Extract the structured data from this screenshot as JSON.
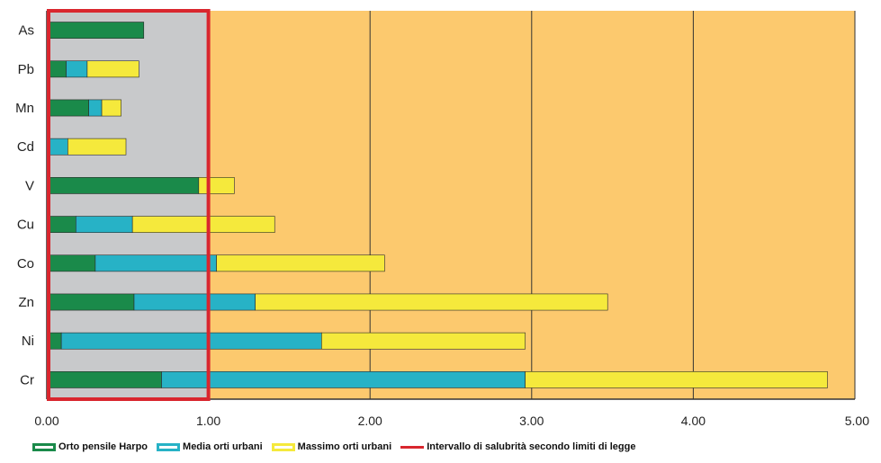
{
  "chart_data": {
    "type": "bar",
    "orientation": "horizontal",
    "stacked": true,
    "categories": [
      "As",
      "Pb",
      "Mn",
      "Cd",
      "V",
      "Cu",
      "Co",
      "Zn",
      "Ni",
      "Cr"
    ],
    "series": [
      {
        "name": "Orto pensile Harpo",
        "color": "#1a8a4a",
        "values": [
          0.6,
          0.12,
          0.26,
          0.02,
          0.94,
          0.18,
          0.3,
          0.54,
          0.09,
          0.71
        ]
      },
      {
        "name": "Media orti urbani",
        "color": "#27b2c6",
        "values": [
          0.0,
          0.13,
          0.08,
          0.11,
          0.0,
          0.35,
          0.75,
          0.75,
          1.61,
          2.25
        ]
      },
      {
        "name": "Massimo orti urbani",
        "color": "#f5e93c",
        "values": [
          0.0,
          0.32,
          0.12,
          0.36,
          0.22,
          0.88,
          1.04,
          2.18,
          1.26,
          1.87
        ]
      }
    ],
    "reference_range": {
      "name": "Intervallo di salubrità secondo limiti di legge",
      "color": "#d9262e",
      "from": 0.0,
      "to": 1.0
    },
    "xlim": [
      0,
      5
    ],
    "xticks": [
      0,
      1,
      2,
      3,
      4,
      5
    ],
    "xtick_labels": [
      "0.00",
      "1.00",
      "2.00",
      "3.00",
      "4.00",
      "5.00"
    ],
    "grid": true,
    "legend_position": "bottom",
    "colors": {
      "safe_zone": "#c8c9cb",
      "background": "#fcc96e",
      "grid": "#333333"
    }
  }
}
